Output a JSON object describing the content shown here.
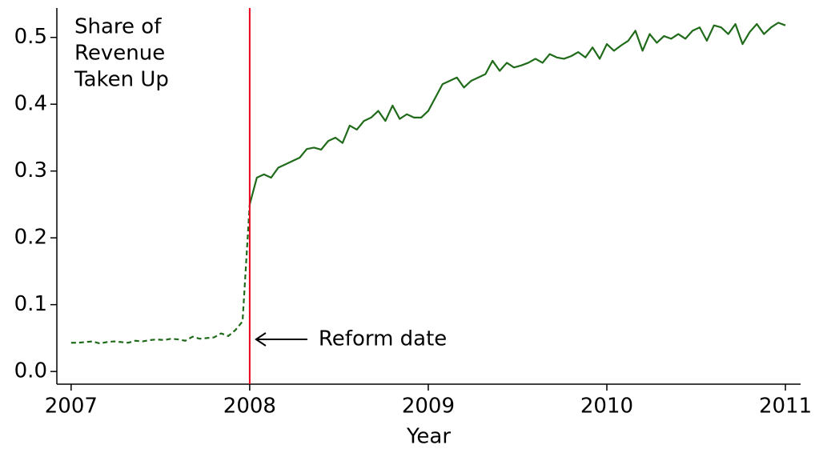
{
  "chart_data": {
    "type": "line",
    "ylabel_lines": [
      "Share of",
      "Revenue",
      "Taken Up"
    ],
    "xlabel": "Year",
    "xlim": [
      2006.92,
      2011.085
    ],
    "ylim": [
      -0.019,
      0.544
    ],
    "xticks": [
      2007,
      2008,
      2009,
      2010,
      2011
    ],
    "yticks": [
      {
        "value": 0,
        "label": "0.0"
      },
      0.1,
      0.2,
      0.3,
      0.4,
      0.5
    ],
    "vlines": [
      {
        "x": 2008,
        "color": "#e8001c"
      }
    ],
    "annotations": [
      {
        "text": "Reform date"
      }
    ],
    "series": [
      {
        "color": "#1f6b1a",
        "dashed": true,
        "x": [
          2007,
          2007.04,
          2007.08,
          2007.12,
          2007.16,
          2007.2,
          2007.24,
          2007.28,
          2007.32,
          2007.36,
          2007.4,
          2007.44,
          2007.48,
          2007.52,
          2007.56,
          2007.6,
          2007.64,
          2007.68,
          2007.72,
          2007.76,
          2007.8,
          2007.84,
          2007.88,
          2007.92,
          2007.96,
          2008
        ],
        "values": [
          0.043,
          0.043,
          0.044,
          0.045,
          0.042,
          0.044,
          0.045,
          0.044,
          0.043,
          0.046,
          0.045,
          0.047,
          0.048,
          0.047,
          0.049,
          0.048,
          0.046,
          0.052,
          0.049,
          0.05,
          0.051,
          0.057,
          0.053,
          0.062,
          0.075,
          0.25
        ]
      },
      {
        "color": "#1f6b1a",
        "dashed": false,
        "x": [
          2008,
          2008.04,
          2008.08,
          2008.12,
          2008.16,
          2008.2,
          2008.24,
          2008.28,
          2008.32,
          2008.36,
          2008.4,
          2008.44,
          2008.48,
          2008.52,
          2008.56,
          2008.6,
          2008.64,
          2008.68,
          2008.72,
          2008.76,
          2008.8,
          2008.84,
          2008.88,
          2008.92,
          2008.96,
          2009,
          2009.04,
          2009.08,
          2009.12,
          2009.16,
          2009.2,
          2009.24,
          2009.28,
          2009.32,
          2009.36,
          2009.4,
          2009.44,
          2009.48,
          2009.52,
          2009.56,
          2009.6,
          2009.64,
          2009.68,
          2009.72,
          2009.76,
          2009.8,
          2009.84,
          2009.88,
          2009.92,
          2009.96,
          2010,
          2010.04,
          2010.08,
          2010.12,
          2010.16,
          2010.2,
          2010.24,
          2010.28,
          2010.32,
          2010.36,
          2010.4,
          2010.44,
          2010.48,
          2010.52,
          2010.56,
          2010.6,
          2010.64,
          2010.68,
          2010.72,
          2010.76,
          2010.8,
          2010.84,
          2010.88,
          2010.92,
          2010.96,
          2011
        ],
        "values": [
          0.25,
          0.29,
          0.295,
          0.29,
          0.305,
          0.31,
          0.315,
          0.32,
          0.333,
          0.335,
          0.332,
          0.345,
          0.35,
          0.342,
          0.368,
          0.362,
          0.375,
          0.38,
          0.39,
          0.375,
          0.398,
          0.378,
          0.385,
          0.38,
          0.38,
          0.39,
          0.41,
          0.43,
          0.435,
          0.44,
          0.425,
          0.435,
          0.44,
          0.445,
          0.465,
          0.45,
          0.462,
          0.455,
          0.458,
          0.462,
          0.468,
          0.462,
          0.475,
          0.47,
          0.468,
          0.472,
          0.478,
          0.47,
          0.485,
          0.468,
          0.49,
          0.48,
          0.488,
          0.495,
          0.51,
          0.48,
          0.505,
          0.492,
          0.502,
          0.498,
          0.505,
          0.498,
          0.51,
          0.515,
          0.495,
          0.518,
          0.515,
          0.505,
          0.52,
          0.49,
          0.508,
          0.52,
          0.505,
          0.515,
          0.522,
          0.518
        ]
      }
    ]
  }
}
